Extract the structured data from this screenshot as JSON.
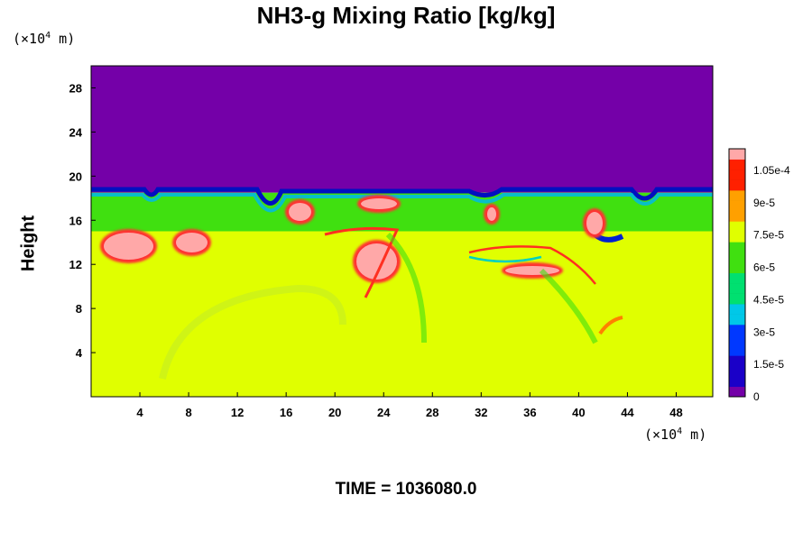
{
  "chart_data": {
    "type": "heatmap",
    "title": "NH3-g Mixing Ratio [kg/kg]",
    "ylabel": "Height",
    "xlabel": "",
    "x_unit": "(×10⁴ m)",
    "y_unit": "(×10⁴ m)",
    "xlim": [
      0,
      51
    ],
    "ylim": [
      0,
      30
    ],
    "x_ticks": [
      4,
      8,
      12,
      16,
      20,
      24,
      28,
      32,
      36,
      40,
      44,
      48
    ],
    "y_ticks": [
      4,
      8,
      12,
      16,
      20,
      24,
      28
    ],
    "colorbar": {
      "min": 0,
      "max": 0.000115,
      "labels": [
        "0",
        "1.5e-5",
        "3e-5",
        "4.5e-5",
        "6e-5",
        "7.5e-5",
        "9e-5",
        "1.05e-4"
      ],
      "label_values": [
        0,
        1.5e-05,
        3e-05,
        4.5e-05,
        6e-05,
        7.5e-05,
        9e-05,
        0.000105
      ],
      "colors": [
        "#7400a8",
        "#1a00c8",
        "#0038ff",
        "#00c8e8",
        "#00e070",
        "#40e010",
        "#e0ff00",
        "#ffa000",
        "#ff2000",
        "#ffa8a8"
      ]
    },
    "layers": [
      {
        "name": "upper",
        "y_range": [
          18.5,
          30
        ],
        "value": 0
      },
      {
        "name": "middle",
        "y_range": [
          15,
          18.5
        ],
        "value": 6e-05
      },
      {
        "name": "lower",
        "y_range": [
          0,
          15
        ],
        "value": 7.87e-05
      }
    ]
  },
  "footer": {
    "time_label": "TIME = 1036080.0"
  }
}
